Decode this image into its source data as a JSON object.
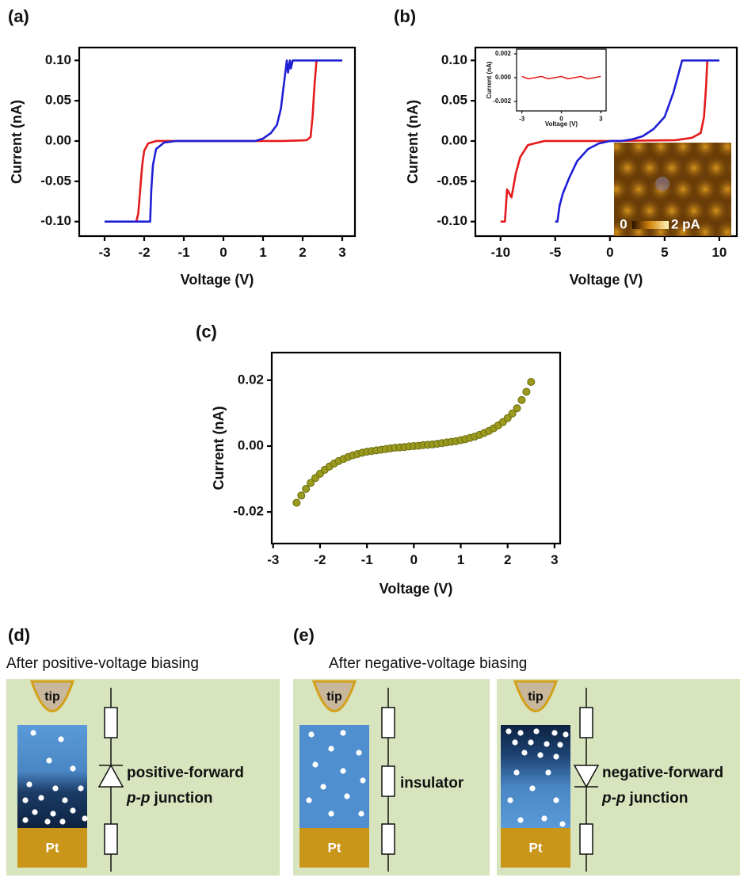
{
  "chart_data": [
    {
      "type": "line",
      "label": "(a)",
      "xlabel": "Voltage (V)",
      "ylabel": "Current (nA)",
      "xlim": [
        -3.64,
        3.32
      ],
      "ylim": [
        -0.118,
        0.116
      ],
      "xticks": [
        -3,
        -2,
        -1,
        0,
        1,
        2,
        3
      ],
      "yticks": [
        {
          "value": 0.1,
          "label": "0.10"
        },
        0.05,
        {
          "value": 0,
          "label": "0.00"
        },
        -0.05,
        {
          "value": -0.1,
          "label": "-0.10"
        }
      ],
      "series": [
        {
          "color": "#e41a1c",
          "x": [
            -2.2,
            -2.15,
            -2.1,
            -2.05,
            -2.0,
            -1.9,
            -1.7,
            1.5,
            2.1,
            2.2,
            2.25,
            2.3,
            2.35,
            2.4
          ],
          "values": [
            -0.1,
            -0.09,
            -0.06,
            -0.03,
            -0.012,
            -0.003,
            0,
            0,
            0.001,
            0.005,
            0.03,
            0.07,
            0.1,
            0.1
          ]
        },
        {
          "color": "#1f1fd6",
          "x": [
            -3,
            -1.85,
            -1.82,
            -1.78,
            -1.7,
            -1.5,
            -1.2,
            0.8,
            1.0,
            1.2,
            1.35,
            1.45,
            1.5,
            1.55,
            1.6,
            1.63,
            1.68,
            1.7,
            1.75,
            3
          ],
          "values": [
            -0.1,
            -0.1,
            -0.06,
            -0.03,
            -0.01,
            -0.002,
            0,
            0,
            0.003,
            0.01,
            0.02,
            0.04,
            0.06,
            0.08,
            0.1,
            0.085,
            0.1,
            0.09,
            0.1,
            0.1
          ]
        }
      ]
    },
    {
      "type": "line",
      "label": "(b)",
      "xlabel": "Voltage (V)",
      "ylabel": "Current (nA)",
      "xlim": [
        -12.3,
        11.6
      ],
      "ylim": [
        -0.118,
        0.116
      ],
      "xticks": [
        -10,
        -5,
        0,
        5,
        10
      ],
      "yticks": [
        {
          "value": 0.1,
          "label": "0.10"
        },
        0.05,
        {
          "value": 0,
          "label": "0.00"
        },
        -0.05,
        {
          "value": -0.1,
          "label": "-0.10"
        }
      ],
      "series": [
        {
          "color": "#e41a1c",
          "x": [
            -10,
            -9.6,
            -9.4,
            -9,
            -8.6,
            -8.2,
            -7.5,
            -6,
            0,
            6,
            7.5,
            8.3,
            8.6,
            8.8,
            8.9
          ],
          "values": [
            -0.1,
            -0.1,
            -0.06,
            -0.07,
            -0.04,
            -0.02,
            -0.005,
            0,
            0,
            0.001,
            0.004,
            0.01,
            0.03,
            0.07,
            0.1
          ]
        },
        {
          "color": "#1f1fd6",
          "x": [
            -5,
            -4.8,
            -4.6,
            -4.3,
            -3.7,
            -3,
            -2,
            -1,
            0,
            1,
            2,
            3,
            4,
            5,
            5.8,
            6.3,
            6.6,
            10
          ],
          "values": [
            -0.1,
            -0.1,
            -0.08,
            -0.065,
            -0.045,
            -0.025,
            -0.01,
            -0.003,
            0,
            0,
            0.002,
            0.006,
            0.015,
            0.03,
            0.06,
            0.085,
            0.1,
            0.1
          ]
        }
      ],
      "inset_image_scale": [
        "0",
        "2 pA"
      ]
    },
    {
      "type": "line",
      "xlabel": "Voltage (V)",
      "ylabel": "Current (nA)",
      "xlim": [
        -3.4,
        3.4
      ],
      "ylim": [
        -0.0028,
        0.0024
      ],
      "xticks": [
        -3,
        0,
        3
      ],
      "yticks": [
        0.002,
        {
          "value": 0,
          "label": "0.000"
        },
        -0.002
      ],
      "series": [
        {
          "color": "#e41a1c",
          "x": [
            -3,
            -2.5,
            -2,
            -1.5,
            -1,
            -0.5,
            0,
            0.5,
            1,
            1.5,
            2,
            2.5,
            3
          ],
          "values": [
            0.0001,
            -0.0001,
            0,
            0.0001,
            -0.0001,
            0,
            0.0001,
            -0.0001,
            0,
            0.0001,
            -0.0001,
            0,
            0.0001
          ]
        }
      ]
    },
    {
      "type": "scatter",
      "label": "(c)",
      "xlabel": "Voltage (V)",
      "ylabel": "Current (nA)",
      "xlim": [
        -3.03,
        3.12
      ],
      "ylim": [
        -0.0296,
        0.0284
      ],
      "xticks": [
        -3,
        -2,
        -1,
        0,
        1,
        2,
        3
      ],
      "yticks": [
        0.02,
        {
          "value": 0,
          "label": "0.00"
        },
        -0.02
      ],
      "color": "#9a9a1e",
      "x": [
        -2.5,
        -2.4,
        -2.3,
        -2.2,
        -2.1,
        -2.0,
        -1.9,
        -1.8,
        -1.7,
        -1.6,
        -1.5,
        -1.4,
        -1.3,
        -1.2,
        -1.1,
        -1.0,
        -0.9,
        -0.8,
        -0.7,
        -0.6,
        -0.5,
        -0.4,
        -0.3,
        -0.2,
        -0.1,
        0,
        0.1,
        0.2,
        0.3,
        0.4,
        0.5,
        0.6,
        0.7,
        0.8,
        0.9,
        1.0,
        1.1,
        1.2,
        1.3,
        1.4,
        1.5,
        1.6,
        1.7,
        1.8,
        1.9,
        2.0,
        2.1,
        2.2,
        2.3,
        2.4,
        2.5
      ],
      "values": [
        -0.0172,
        -0.015,
        -0.013,
        -0.0112,
        -0.0097,
        -0.0084,
        -0.0072,
        -0.0062,
        -0.0053,
        -0.0045,
        -0.0039,
        -0.0033,
        -0.0028,
        -0.0024,
        -0.002,
        -0.0017,
        -0.0015,
        -0.0013,
        -0.0011,
        -0.0009,
        -0.0007,
        -0.0005,
        -0.0004,
        -0.0003,
        -0.0001,
        0,
        0.0001,
        0.0003,
        0.0004,
        0.0005,
        0.0007,
        0.0009,
        0.0011,
        0.0013,
        0.0015,
        0.0018,
        0.0021,
        0.0025,
        0.0029,
        0.0034,
        0.004,
        0.0046,
        0.0054,
        0.0063,
        0.0073,
        0.0085,
        0.0099,
        0.0115,
        0.014,
        0.0165,
        0.0195
      ]
    }
  ],
  "diagrams": {
    "d": {
      "label": "(d)",
      "caption": "After positive-voltage biasing",
      "tip": "tip",
      "electrode": "Pt",
      "state": "positive-forward",
      "junction": [
        "p-p",
        "junction"
      ]
    },
    "e": {
      "label": "(e)",
      "caption": "After negative-voltage biasing",
      "panels": [
        {
          "tip": "tip",
          "electrode": "Pt",
          "state": "insulator"
        },
        {
          "tip": "tip",
          "electrode": "Pt",
          "state": "negative-forward",
          "junction": [
            "p-p",
            "junction"
          ]
        }
      ]
    }
  }
}
